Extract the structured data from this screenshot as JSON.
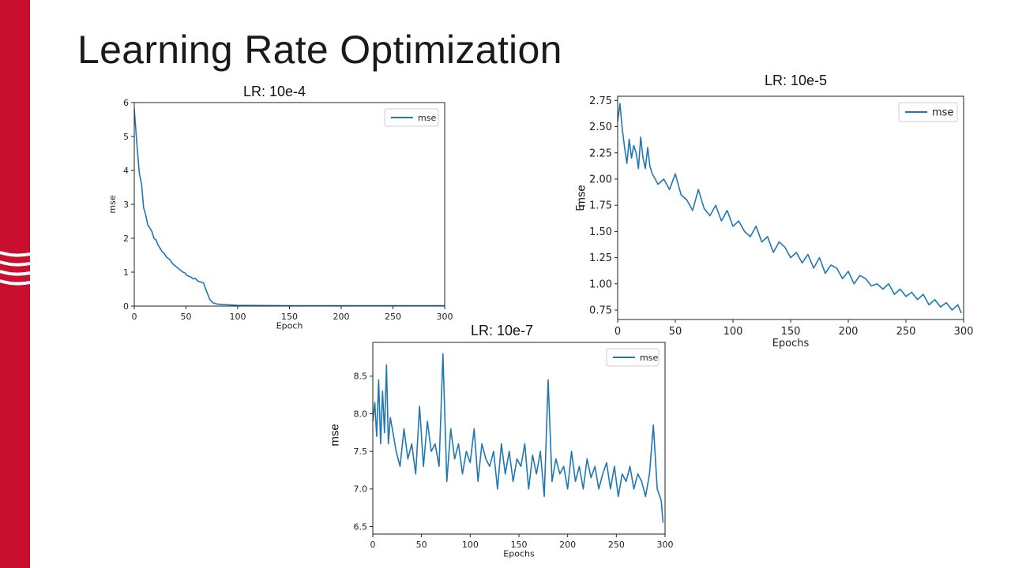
{
  "slide": {
    "title": "Learning Rate Optimization",
    "accent_color": "#c8102e",
    "line_color": "#1f77b4"
  },
  "captions": {
    "chart1": "LR: 10e-4",
    "chart2": "LR: 10e-5",
    "chart3": "LR: 10e-7",
    "overlay_ylabel2": "mse",
    "overlay_ylabel3": "mse"
  },
  "chart_data": [
    {
      "type": "line",
      "title": "LR: 10e-4",
      "xlabel": "Epoch",
      "ylabel": "mse",
      "legend": "mse",
      "legend_position": "top-right",
      "xlim": [
        0,
        300
      ],
      "ylim": [
        0,
        6
      ],
      "xticks": [
        0,
        50,
        100,
        150,
        200,
        250,
        300
      ],
      "yticks": [
        0,
        1,
        2,
        3,
        4,
        5,
        6
      ],
      "series": [
        {
          "name": "mse",
          "x": [
            0,
            3,
            5,
            7,
            9,
            11,
            13,
            15,
            17,
            19,
            21,
            23,
            25,
            27,
            29,
            31,
            33,
            35,
            37,
            39,
            41,
            43,
            45,
            47,
            49,
            51,
            53,
            55,
            57,
            59,
            61,
            63,
            65,
            67,
            69,
            71,
            73,
            76,
            80,
            85,
            90,
            95,
            100,
            150,
            200,
            250,
            300
          ],
          "values": [
            5.8,
            4.6,
            3.9,
            3.6,
            2.9,
            2.7,
            2.4,
            2.3,
            2.2,
            2.0,
            1.95,
            1.8,
            1.7,
            1.6,
            1.55,
            1.45,
            1.4,
            1.35,
            1.25,
            1.2,
            1.15,
            1.1,
            1.05,
            1.0,
            0.98,
            0.9,
            0.88,
            0.85,
            0.8,
            0.82,
            0.75,
            0.72,
            0.7,
            0.68,
            0.5,
            0.35,
            0.2,
            0.1,
            0.06,
            0.05,
            0.04,
            0.03,
            0.02,
            0.01,
            0.01,
            0.01,
            0.01
          ]
        }
      ]
    },
    {
      "type": "line",
      "title": "LR: 10e-5",
      "xlabel": "Epochs",
      "ylabel": "E",
      "legend": "mse",
      "legend_position": "top-right",
      "xlim": [
        0,
        300
      ],
      "ylim": [
        0.66,
        2.79
      ],
      "xticks": [
        0,
        50,
        100,
        150,
        200,
        250,
        300
      ],
      "yticks": [
        0.75,
        1.0,
        1.25,
        1.5,
        1.75,
        2.0,
        2.25,
        2.5,
        2.75
      ],
      "series": [
        {
          "name": "mse",
          "x": [
            0,
            2,
            4,
            6,
            8,
            10,
            12,
            14,
            16,
            18,
            20,
            22,
            24,
            26,
            28,
            30,
            35,
            40,
            45,
            50,
            55,
            60,
            65,
            70,
            75,
            80,
            85,
            90,
            95,
            100,
            105,
            110,
            115,
            120,
            125,
            130,
            135,
            140,
            145,
            150,
            155,
            160,
            165,
            170,
            175,
            180,
            185,
            190,
            195,
            200,
            205,
            210,
            215,
            220,
            225,
            230,
            235,
            240,
            245,
            250,
            255,
            260,
            265,
            270,
            275,
            280,
            285,
            290,
            295,
            298
          ],
          "values": [
            2.55,
            2.72,
            2.48,
            2.3,
            2.15,
            2.38,
            2.2,
            2.32,
            2.25,
            2.1,
            2.4,
            2.2,
            2.1,
            2.3,
            2.12,
            2.05,
            1.95,
            2.0,
            1.9,
            2.05,
            1.85,
            1.8,
            1.7,
            1.9,
            1.72,
            1.65,
            1.75,
            1.6,
            1.7,
            1.55,
            1.6,
            1.5,
            1.45,
            1.55,
            1.4,
            1.45,
            1.3,
            1.4,
            1.35,
            1.25,
            1.3,
            1.2,
            1.28,
            1.15,
            1.25,
            1.1,
            1.18,
            1.15,
            1.05,
            1.12,
            1.0,
            1.08,
            1.05,
            0.98,
            1.0,
            0.95,
            1.0,
            0.9,
            0.95,
            0.88,
            0.92,
            0.85,
            0.9,
            0.8,
            0.85,
            0.78,
            0.82,
            0.75,
            0.8,
            0.72
          ]
        }
      ]
    },
    {
      "type": "line",
      "title": "LR: 10e-7",
      "xlabel": "Epochs",
      "ylabel": "",
      "legend": "mse",
      "legend_position": "top-right",
      "xlim": [
        0,
        300
      ],
      "ylim": [
        6.4,
        8.95
      ],
      "xticks": [
        0,
        50,
        100,
        150,
        200,
        250,
        300
      ],
      "yticks": [
        6.5,
        7.0,
        7.5,
        8.0,
        8.5
      ],
      "series": [
        {
          "name": "mse",
          "x": [
            0,
            2,
            4,
            6,
            8,
            10,
            12,
            14,
            16,
            18,
            20,
            24,
            28,
            32,
            36,
            40,
            44,
            48,
            52,
            56,
            60,
            64,
            68,
            72,
            76,
            80,
            84,
            88,
            92,
            96,
            100,
            104,
            108,
            112,
            116,
            120,
            124,
            128,
            132,
            136,
            140,
            144,
            148,
            152,
            156,
            160,
            164,
            168,
            172,
            176,
            180,
            184,
            188,
            192,
            196,
            200,
            204,
            208,
            212,
            216,
            220,
            224,
            228,
            232,
            236,
            240,
            244,
            248,
            252,
            256,
            260,
            264,
            268,
            272,
            276,
            280,
            284,
            288,
            292,
            296,
            298
          ],
          "values": [
            7.9,
            8.15,
            7.7,
            8.45,
            7.6,
            8.3,
            7.75,
            8.65,
            7.6,
            7.95,
            7.8,
            7.5,
            7.3,
            7.8,
            7.4,
            7.6,
            7.2,
            8.1,
            7.3,
            7.9,
            7.5,
            7.6,
            7.3,
            8.8,
            7.1,
            7.8,
            7.4,
            7.6,
            7.2,
            7.5,
            7.35,
            7.8,
            7.1,
            7.6,
            7.4,
            7.3,
            7.5,
            7.0,
            7.6,
            7.2,
            7.5,
            7.1,
            7.4,
            7.3,
            7.6,
            7.0,
            7.45,
            7.2,
            7.5,
            6.9,
            8.45,
            7.1,
            7.4,
            7.2,
            7.3,
            7.0,
            7.5,
            7.1,
            7.3,
            7.0,
            7.4,
            7.15,
            7.3,
            7.0,
            7.2,
            7.35,
            7.0,
            7.3,
            6.9,
            7.2,
            7.1,
            7.3,
            7.0,
            7.2,
            7.1,
            6.9,
            7.2,
            7.85,
            7.0,
            6.85,
            6.55
          ]
        }
      ]
    }
  ]
}
